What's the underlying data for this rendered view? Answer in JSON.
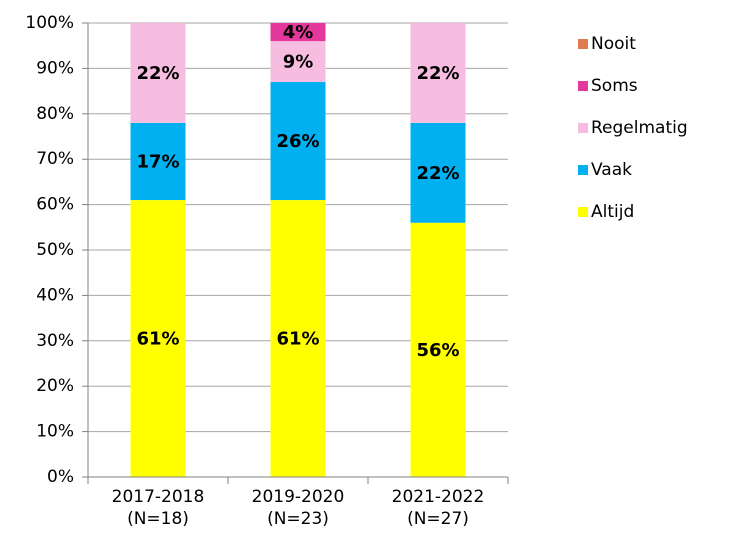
{
  "chart_data": {
    "type": "stacked_bar",
    "categories": [
      "2017-2018\n(N=18)",
      "2019-2020\n(N=23)",
      "2021-2022\n(N=27)"
    ],
    "series": [
      {
        "name": "Altijd",
        "color": "#ffff00",
        "values": [
          61,
          61,
          56
        ],
        "value_labels": [
          "61%",
          "61%",
          "56%"
        ]
      },
      {
        "name": "Vaak",
        "color": "#00b0f0",
        "values": [
          17,
          26,
          22
        ],
        "value_labels": [
          "17%",
          "26%",
          "22%"
        ]
      },
      {
        "name": "Regelmatig",
        "color": "#f7bde0",
        "values": [
          22,
          9,
          22
        ],
        "value_labels": [
          "22%",
          "9%",
          "22%"
        ]
      },
      {
        "name": "Soms",
        "color": "#e4389c",
        "values": [
          0,
          4,
          0
        ],
        "value_labels": [
          null,
          "4%",
          null
        ]
      },
      {
        "name": "Nooit",
        "color": "#e07b4f",
        "values": [
          0,
          0,
          0
        ],
        "value_labels": [
          null,
          null,
          null
        ]
      }
    ],
    "ylim": [
      0,
      100
    ],
    "yticks": [
      {
        "value": 0,
        "label": "0%"
      },
      {
        "value": 10,
        "label": "10%"
      },
      {
        "value": 20,
        "label": "20%"
      },
      {
        "value": 30,
        "label": "30%"
      },
      {
        "value": 40,
        "label": "40%"
      },
      {
        "value": 50,
        "label": "50%"
      },
      {
        "value": 60,
        "label": "60%"
      },
      {
        "value": 70,
        "label": "70%"
      },
      {
        "value": 80,
        "label": "80%"
      },
      {
        "value": 90,
        "label": "90%"
      },
      {
        "value": 100,
        "label": "100%"
      }
    ],
    "grid": true,
    "legend": "right"
  }
}
